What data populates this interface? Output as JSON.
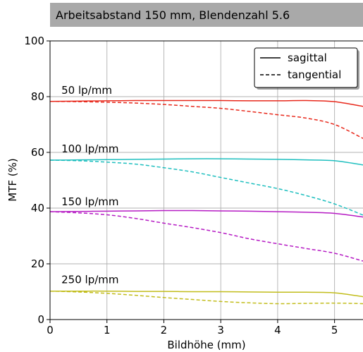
{
  "chart_data": {
    "type": "line",
    "title": "Arbeitsabstand 150 mm, Blendenzahl 5.6",
    "xlabel": "Bildhöhe (mm)",
    "ylabel": "MTF (%)",
    "xlim": [
      0,
      5.5
    ],
    "ylim": [
      0,
      100
    ],
    "xticks": [
      0,
      1,
      2,
      3,
      4,
      5
    ],
    "yticks": [
      0,
      20,
      40,
      60,
      80,
      100
    ],
    "grid": true,
    "legend": {
      "position": "top-right",
      "entries": [
        {
          "label": "sagittal",
          "style": "solid"
        },
        {
          "label": "tangential",
          "style": "dashed"
        }
      ]
    },
    "annotations": [
      {
        "text": "50 lp/mm",
        "x": 0.2,
        "y": 81
      },
      {
        "text": "100 lp/mm",
        "x": 0.2,
        "y": 60
      },
      {
        "text": "150 lp/mm",
        "x": 0.2,
        "y": 41
      },
      {
        "text": "250 lp/mm",
        "x": 0.2,
        "y": 13
      }
    ],
    "x": [
      0,
      0.5,
      1,
      1.5,
      2,
      2.5,
      3,
      3.5,
      4,
      4.5,
      5,
      5.5
    ],
    "series": [
      {
        "group": "50 lp/mm",
        "style": "solid",
        "color": "#e8291c",
        "values": [
          78.3,
          78.4,
          78.5,
          78.6,
          78.6,
          78.6,
          78.6,
          78.5,
          78.5,
          78.6,
          78.2,
          76.5
        ]
      },
      {
        "group": "50 lp/mm",
        "style": "dashed",
        "color": "#e8291c",
        "values": [
          78.3,
          78.2,
          78.0,
          77.7,
          77.2,
          76.5,
          75.8,
          74.7,
          73.5,
          72.3,
          70.0,
          65.0
        ]
      },
      {
        "group": "100 lp/mm",
        "style": "solid",
        "color": "#1fbfbf",
        "values": [
          57.2,
          57.3,
          57.4,
          57.5,
          57.6,
          57.7,
          57.7,
          57.6,
          57.5,
          57.3,
          57.0,
          55.5
        ]
      },
      {
        "group": "100 lp/mm",
        "style": "dashed",
        "color": "#1fbfbf",
        "values": [
          57.2,
          57.0,
          56.5,
          55.8,
          54.5,
          53.0,
          51.0,
          49.0,
          47.0,
          44.5,
          41.5,
          37.5
        ]
      },
      {
        "group": "150 lp/mm",
        "style": "solid",
        "color": "#b61cc4",
        "values": [
          38.7,
          38.8,
          38.9,
          39.0,
          39.1,
          39.1,
          39.0,
          38.9,
          38.7,
          38.5,
          38.1,
          36.8
        ]
      },
      {
        "group": "150 lp/mm",
        "style": "dashed",
        "color": "#b61cc4",
        "values": [
          38.7,
          38.3,
          37.6,
          36.3,
          34.6,
          33.0,
          31.2,
          29.0,
          27.2,
          25.5,
          23.8,
          21.0
        ]
      },
      {
        "group": "250 lp/mm",
        "style": "solid",
        "color": "#c2bd1c",
        "values": [
          10.2,
          10.2,
          10.2,
          10.1,
          10.1,
          10.0,
          10.0,
          9.9,
          9.8,
          9.8,
          9.6,
          8.2
        ]
      },
      {
        "group": "250 lp/mm",
        "style": "dashed",
        "color": "#c2bd1c",
        "values": [
          10.2,
          9.9,
          9.4,
          8.7,
          7.9,
          7.2,
          6.5,
          6.0,
          5.7,
          5.8,
          5.9,
          5.7
        ]
      }
    ]
  }
}
